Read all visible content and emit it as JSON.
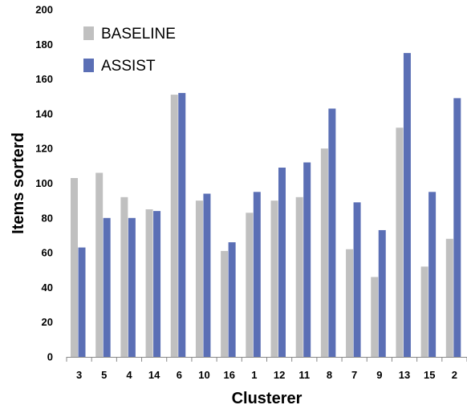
{
  "chart_data": {
    "type": "bar",
    "title": "",
    "xlabel": "Clusterer",
    "ylabel": "Items sorterd",
    "ylim": [
      0,
      200
    ],
    "yticks": [
      0,
      20,
      40,
      60,
      80,
      100,
      120,
      140,
      160,
      180,
      200
    ],
    "grid": false,
    "legend": "top-left",
    "categories": [
      "3",
      "5",
      "4",
      "14",
      "6",
      "10",
      "16",
      "1",
      "12",
      "11",
      "8",
      "7",
      "9",
      "13",
      "15",
      "2"
    ],
    "series": [
      {
        "name": "BASELINE",
        "color": "#c0c0c0",
        "values": [
          103,
          106,
          92,
          85,
          151,
          90,
          61,
          83,
          90,
          92,
          120,
          62,
          46,
          132,
          52,
          68
        ]
      },
      {
        "name": "ASSIST",
        "color": "#5b6fb5",
        "values": [
          63,
          80,
          80,
          84,
          152,
          94,
          66,
          95,
          109,
          112,
          143,
          89,
          73,
          175,
          95,
          149
        ]
      }
    ]
  }
}
